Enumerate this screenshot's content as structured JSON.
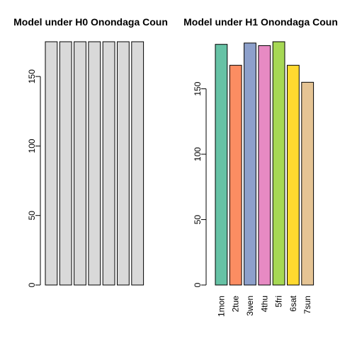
{
  "chart_data": [
    {
      "type": "bar",
      "title": "Model under H0 Onondaga Coun",
      "categories": [
        "1mon",
        "2tue",
        "3wen",
        "4thu",
        "5fri",
        "6sat",
        "7sun"
      ],
      "show_category_labels": false,
      "values": [
        175,
        175,
        175,
        175,
        175,
        175,
        175
      ],
      "colors": [
        "#D9D9D9",
        "#D9D9D9",
        "#D9D9D9",
        "#D9D9D9",
        "#D9D9D9",
        "#D9D9D9",
        "#D9D9D9"
      ],
      "ylim": [
        0,
        175
      ],
      "yticks": [
        0,
        50,
        100,
        150
      ],
      "ytick_labels": [
        "0",
        "50",
        "100",
        "150"
      ],
      "xlabel": "",
      "ylabel": "",
      "grid": false
    },
    {
      "type": "bar",
      "title": "Model under H1 Onondaga Coun",
      "categories": [
        "1mon",
        "2tue",
        "3wen",
        "4thu",
        "5fri",
        "6sat",
        "7sun"
      ],
      "show_category_labels": true,
      "values": [
        184,
        168,
        185,
        183,
        186,
        168,
        155
      ],
      "colors": [
        "#66C2A5",
        "#FC8D62",
        "#8DA0CB",
        "#E78AC3",
        "#A6D854",
        "#FFD92F",
        "#E5C494"
      ],
      "ylim": [
        0,
        186
      ],
      "yticks": [
        0,
        50,
        100,
        150
      ],
      "ytick_labels": [
        "0",
        "50",
        "100",
        "150"
      ],
      "xlabel": "",
      "ylabel": "",
      "grid": false
    }
  ]
}
